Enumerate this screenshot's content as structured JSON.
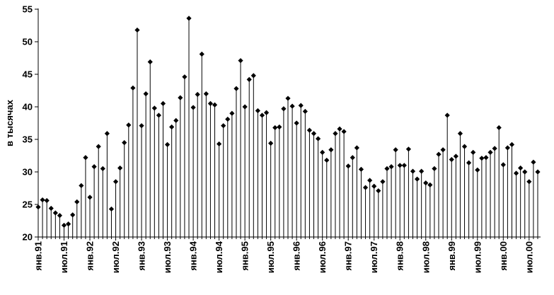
{
  "chart_data": {
    "type": "scatter",
    "style": "stem",
    "ylabel": "в тысячах",
    "xlabel": "",
    "title": "",
    "ylim": [
      20,
      55
    ],
    "yticks": [
      20,
      25,
      30,
      35,
      40,
      45,
      50,
      55
    ],
    "grid": false,
    "legend": "none",
    "marker": "diamond",
    "marker_color": "#000000",
    "x_tick_labels": [
      {
        "index": 0,
        "label": "янв.91"
      },
      {
        "index": 6,
        "label": "июл.91"
      },
      {
        "index": 12,
        "label": "янв.92"
      },
      {
        "index": 18,
        "label": "июл.92"
      },
      {
        "index": 24,
        "label": "янв.93"
      },
      {
        "index": 30,
        "label": "июл.93"
      },
      {
        "index": 36,
        "label": "янв.94"
      },
      {
        "index": 42,
        "label": "июл.94"
      },
      {
        "index": 48,
        "label": "янв.95"
      },
      {
        "index": 54,
        "label": "июл.95"
      },
      {
        "index": 60,
        "label": "янв.96"
      },
      {
        "index": 66,
        "label": "июл.96"
      },
      {
        "index": 72,
        "label": "янв.97"
      },
      {
        "index": 78,
        "label": "июл.97"
      },
      {
        "index": 84,
        "label": "янв.98"
      },
      {
        "index": 90,
        "label": "июл.98"
      },
      {
        "index": 96,
        "label": "янв.99"
      },
      {
        "index": 102,
        "label": "июл.99"
      },
      {
        "index": 108,
        "label": "янв.00"
      },
      {
        "index": 114,
        "label": "июл.00"
      }
    ],
    "values": [
      24.6,
      25.7,
      25.6,
      24.4,
      23.7,
      23.3,
      21.8,
      22.0,
      23.4,
      25.4,
      27.9,
      32.2,
      26.1,
      30.8,
      33.9,
      30.5,
      35.9,
      24.3,
      28.5,
      30.6,
      34.5,
      37.2,
      42.9,
      51.8,
      37.1,
      42.0,
      46.9,
      39.8,
      38.7,
      40.5,
      34.2,
      36.9,
      37.9,
      41.4,
      44.6,
      53.6,
      39.9,
      41.9,
      48.1,
      42.0,
      40.5,
      40.3,
      34.3,
      37.1,
      38.1,
      39.0,
      42.8,
      47.1,
      40.0,
      44.2,
      44.8,
      39.4,
      38.7,
      39.1,
      34.4,
      36.8,
      36.9,
      39.7,
      41.3,
      40.1,
      37.5,
      40.2,
      39.3,
      36.4,
      35.9,
      35.1,
      33.0,
      31.8,
      33.4,
      35.9,
      36.6,
      36.2,
      30.9,
      32.2,
      33.7,
      30.4,
      27.6,
      28.7,
      27.8,
      27.1,
      28.5,
      30.5,
      30.8,
      33.4,
      31.0,
      31.0,
      33.5,
      30.1,
      28.9,
      30.1,
      28.3,
      28.0,
      30.5,
      32.7,
      33.4,
      38.7,
      31.9,
      32.4,
      35.9,
      33.9,
      31.4,
      33.0,
      30.3,
      32.1,
      32.2,
      33.0,
      33.6,
      36.8,
      31.1,
      33.7,
      34.2,
      29.8,
      30.6,
      30.0,
      28.5,
      31.5,
      30.0
    ]
  }
}
